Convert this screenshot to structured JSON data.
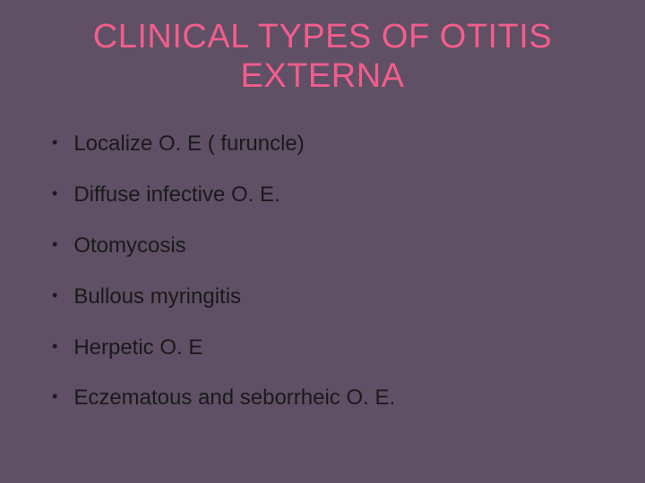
{
  "slide": {
    "title": "CLINICAL TYPES OF OTITIS EXTERNA",
    "title_color": "#f35d8c",
    "title_fontsize": 38,
    "background_color": "#5f5065",
    "body_text_color": "#1a1a1a",
    "body_fontsize": 24,
    "bullet_items": [
      "Localize O. E ( furuncle)",
      "Diffuse infective O. E.",
      "Otomycosis",
      "Bullous myringitis",
      "Herpetic O. E",
      "Eczematous and seborrheic O. E."
    ]
  }
}
